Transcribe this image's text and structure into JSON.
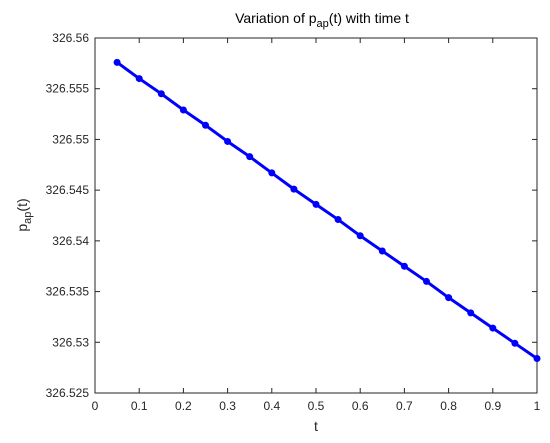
{
  "chart_data": {
    "type": "line",
    "title_main": "Variation of p",
    "title_sub": "ap",
    "title_tail": "(t) with time t",
    "xlabel": "t",
    "ylabel_main": "p",
    "ylabel_sub": "ap",
    "ylabel_tail": "(t)",
    "xlim": [
      0,
      1
    ],
    "ylim": [
      326.525,
      326.56
    ],
    "xticks": [
      0,
      0.1,
      0.2,
      0.3,
      0.4,
      0.5,
      0.6,
      0.7,
      0.8,
      0.9,
      1
    ],
    "xtick_labels": [
      "0",
      "0.1",
      "0.2",
      "0.3",
      "0.4",
      "0.5",
      "0.6",
      "0.7",
      "0.8",
      "0.9",
      "1"
    ],
    "yticks": [
      326.525,
      326.53,
      326.535,
      326.54,
      326.545,
      326.55,
      326.555,
      326.56
    ],
    "ytick_labels": [
      "326.525",
      "326.53",
      "326.535",
      "326.54",
      "326.545",
      "326.55",
      "326.555",
      "326.56"
    ],
    "grid": false,
    "line_color": "#0000ff",
    "series": [
      {
        "x": [
          0.05,
          0.1,
          0.15,
          0.2,
          0.25,
          0.3,
          0.35,
          0.4,
          0.45,
          0.5,
          0.55,
          0.6,
          0.65,
          0.7,
          0.75,
          0.8,
          0.85,
          0.9,
          0.95,
          1.0
        ],
        "y": [
          326.5576,
          326.556,
          326.5545,
          326.5529,
          326.5514,
          326.5498,
          326.5483,
          326.5467,
          326.5451,
          326.5436,
          326.5421,
          326.5405,
          326.539,
          326.5375,
          326.536,
          326.5344,
          326.5329,
          326.5314,
          326.5299,
          326.5284
        ]
      }
    ]
  }
}
